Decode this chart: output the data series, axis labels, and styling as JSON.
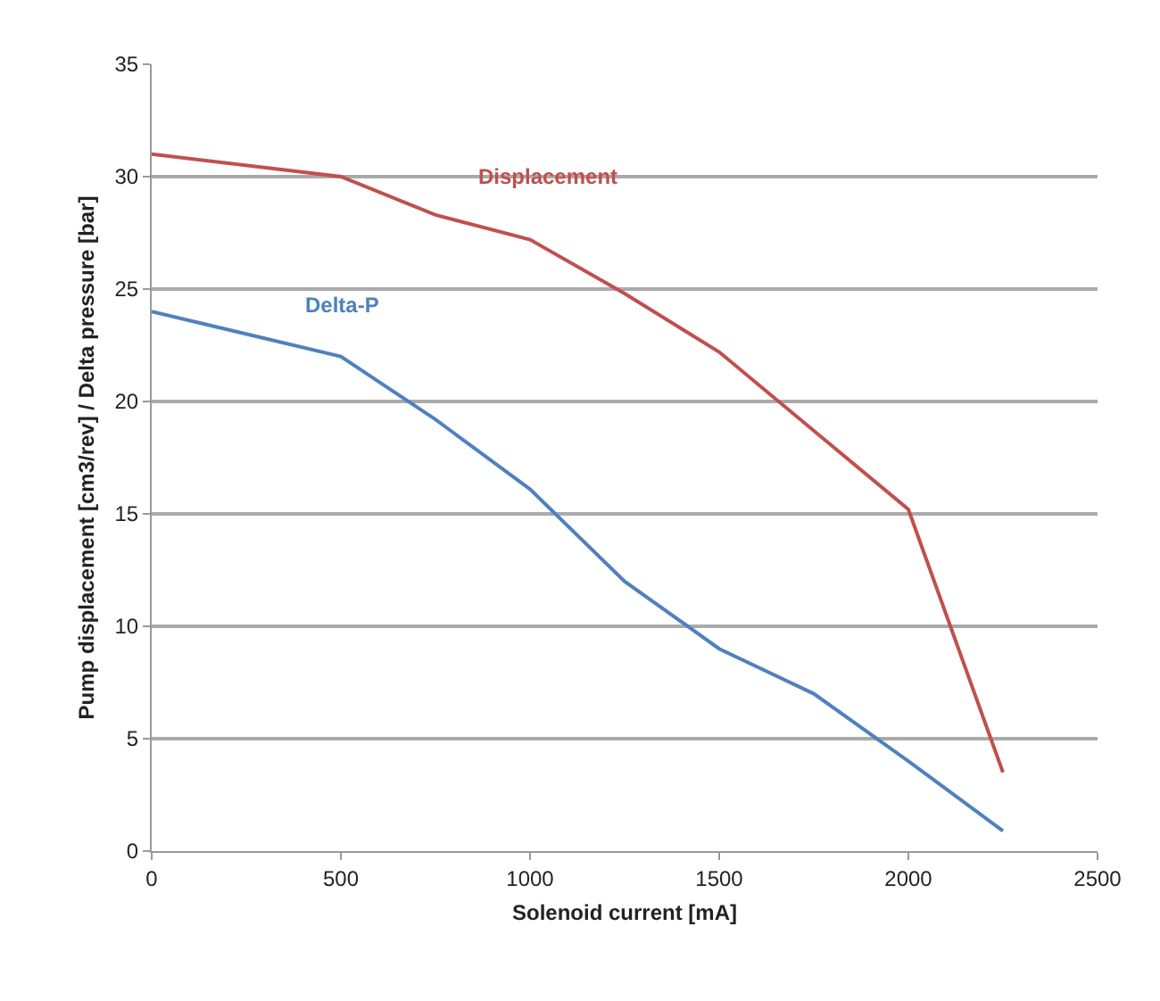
{
  "chart_data": {
    "type": "line",
    "xlabel": "Solenoid current [mA]",
    "ylabel": "Pump displacement [cm3/rev] / Delta pressure [bar]",
    "x": [
      0,
      500,
      750,
      1000,
      1250,
      1500,
      1750,
      2000,
      2250
    ],
    "series": [
      {
        "name": "Displacement",
        "color": "#c0504d",
        "values": [
          31,
          30,
          28.3,
          27.2,
          24.8,
          22.2,
          18.7,
          15.2,
          3.5
        ]
      },
      {
        "name": "Delta-P",
        "color": "#4f81bd",
        "values": [
          24,
          22,
          19.2,
          16.1,
          12,
          9,
          7,
          4,
          0.9
        ]
      }
    ],
    "xlim": [
      0,
      2500
    ],
    "xticks": [
      0,
      500,
      1000,
      1500,
      2000,
      2500
    ],
    "ylim": [
      0,
      35
    ],
    "yticks": [
      0,
      5,
      10,
      15,
      20,
      25,
      30,
      35
    ],
    "grid": "y",
    "legend": false,
    "marker": "none",
    "line_style": "solid"
  }
}
